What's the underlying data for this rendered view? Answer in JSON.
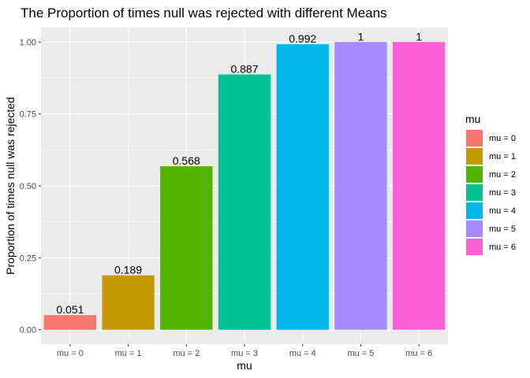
{
  "chart_data": {
    "type": "bar",
    "title": "The Proportion of times null was rejected with different Means",
    "xlabel": "mu",
    "ylabel": "Proportion of times null was rejected",
    "categories": [
      "mu = 0",
      "mu = 1",
      "mu = 2",
      "mu = 3",
      "mu = 4",
      "mu = 5",
      "mu = 6"
    ],
    "values": [
      0.051,
      0.189,
      0.568,
      0.887,
      0.992,
      1,
      1
    ],
    "data_labels": [
      "0.051",
      "0.189",
      "0.568",
      "0.887",
      "0.992",
      "1",
      "1"
    ],
    "colors": [
      "#F8766D",
      "#C49A00",
      "#53B400",
      "#00C094",
      "#00B6EB",
      "#A58AFF",
      "#FB61D7"
    ],
    "ylim": [
      -0.05,
      1.05
    ],
    "yticks": [
      0,
      0.25,
      0.5,
      0.75,
      1
    ],
    "ytick_labels": [
      "0.00",
      "0.25",
      "0.50",
      "0.75",
      "1.00"
    ],
    "grid": true,
    "panel_background": "#EBEBEB",
    "legend": {
      "title": "mu",
      "position": "right",
      "entries": [
        "mu = 0",
        "mu = 1",
        "mu = 2",
        "mu = 3",
        "mu = 4",
        "mu = 5",
        "mu = 6"
      ]
    }
  }
}
